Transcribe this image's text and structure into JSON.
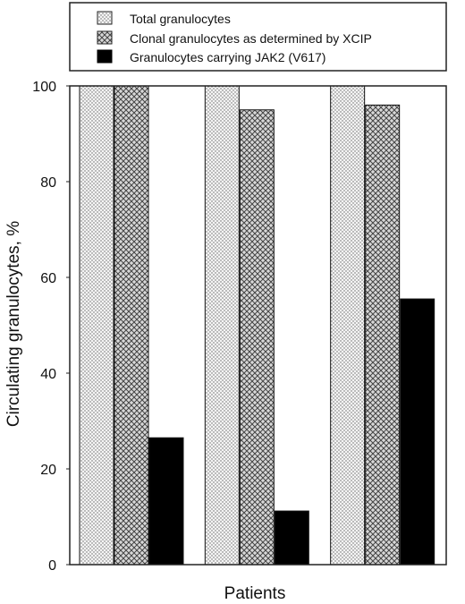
{
  "chart_data": {
    "type": "bar",
    "title": "",
    "xlabel": "Patients",
    "ylabel": "Circulating granulocytes, %",
    "categories": [
      "",
      "",
      ""
    ],
    "ylim": [
      0,
      100
    ],
    "yticks": [
      "0",
      "20",
      "40",
      "60",
      "80",
      "100"
    ],
    "grid": false,
    "legend_position": "top",
    "series": [
      {
        "name": "Total granulocytes",
        "pattern": "dotted",
        "color": "#d9d9d9",
        "values": [
          100,
          100,
          100
        ]
      },
      {
        "name": "Clonal granulocytes as determined by XCIP",
        "pattern": "crosshatch",
        "color": "#9a9a9a",
        "values": [
          100,
          95,
          96
        ]
      },
      {
        "name": "Granulocytes carrying JAK2 (V617)",
        "pattern": "solid",
        "color": "#000000",
        "values": [
          26.5,
          11.2,
          55.5
        ]
      }
    ]
  }
}
